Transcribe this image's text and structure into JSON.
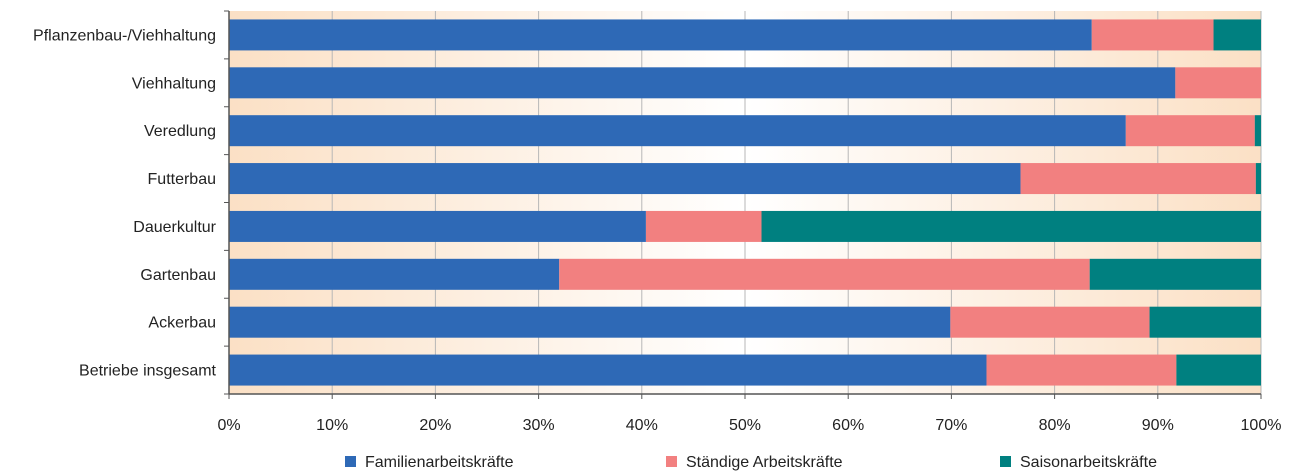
{
  "chart_data": {
    "type": "bar",
    "orientation": "horizontal",
    "stacked": true,
    "categories": [
      "Pflanzenbau-/Viehhaltung",
      "Viehhaltung ",
      "Veredlung",
      "Futterbau",
      "Dauerkultur",
      "Gartenbau",
      "Ackerbau",
      "Betriebe insgesamt"
    ],
    "series": [
      {
        "name": "Familienarbeitskräfte",
        "color": "#2e69b6",
        "values": [
          83.6,
          91.7,
          86.9,
          76.7,
          40.4,
          32.0,
          69.9,
          73.4
        ]
      },
      {
        "name": "Ständige Arbeitskräfte",
        "color": "#f28080",
        "values": [
          11.8,
          8.3,
          12.5,
          22.8,
          11.2,
          51.4,
          19.3,
          18.4
        ]
      },
      {
        "name": "Saisonarbeitskräfte",
        "color": "#008080",
        "values": [
          4.6,
          0.0,
          0.6,
          0.5,
          48.4,
          16.6,
          10.8,
          8.2
        ]
      }
    ],
    "xlim": [
      0,
      100
    ],
    "xticks": [
      "0%",
      "10%",
      "20%",
      "30%",
      "40%",
      "50%",
      "60%",
      "70%",
      "80%",
      "90%",
      "100%"
    ],
    "grid": true,
    "legend_position": "bottom",
    "background_gradient": [
      "#fbe0c5",
      "#ffffff"
    ]
  }
}
